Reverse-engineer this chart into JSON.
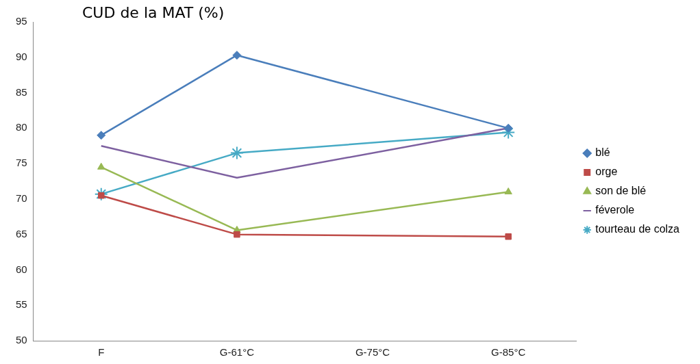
{
  "chart_data": {
    "type": "line",
    "title": "CUD de la MAT (%)",
    "categories": [
      "F",
      "G-61°C",
      "G-75°C",
      "G-85°C"
    ],
    "ylim": [
      50,
      95
    ],
    "yticks": [
      50,
      55,
      60,
      65,
      70,
      75,
      80,
      85,
      90,
      95
    ],
    "grid": false,
    "legend": "right",
    "series": [
      {
        "name": "blé",
        "color": "#4a7ebb",
        "marker": "diamond",
        "values": [
          79,
          90.3,
          null,
          80
        ]
      },
      {
        "name": "orge",
        "color": "#be4b48",
        "marker": "square",
        "values": [
          70.5,
          65,
          null,
          64.7
        ]
      },
      {
        "name": "son de blé",
        "color": "#98b954",
        "marker": "triangle",
        "values": [
          74.5,
          65.6,
          null,
          71
        ]
      },
      {
        "name": "féverole",
        "color": "#7d60a0",
        "marker": "none",
        "values": [
          77.5,
          73,
          null,
          80
        ]
      },
      {
        "name": "tourteau de colza",
        "color": "#46aac5",
        "marker": "cross",
        "values": [
          70.7,
          76.5,
          null,
          79.4
        ]
      }
    ]
  }
}
